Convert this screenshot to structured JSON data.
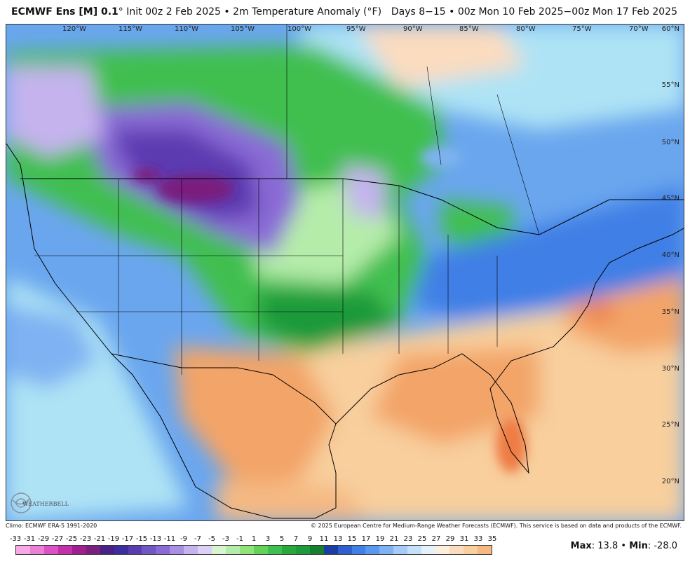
{
  "header": {
    "model": "ECMWF Ens [M] 0.1",
    "degree": "°",
    "init": "Init 00z 2 Feb 2025 • 2m Temperature Anomaly (°F)",
    "valid": "Days 8−15 • 00z Mon 10 Feb 2025−00z Mon 17 Feb 2025"
  },
  "map": {
    "longitudes": [
      "120°W",
      "115°W",
      "110°W",
      "105°W",
      "100°W",
      "95°W",
      "90°W",
      "85°W",
      "80°W",
      "75°W",
      "70°W"
    ],
    "latitudes": [
      "60°N",
      "55°N",
      "50°N",
      "45°N",
      "40°N",
      "35°N",
      "30°N",
      "25°N",
      "20°N"
    ],
    "colors": {
      "ocean_cold": "#9fd3f0",
      "deep_purple": "#7a1f7d",
      "purple": "#5b3bb0",
      "violet": "#8a6ad6",
      "lavender": "#c5b3ee",
      "green_dark": "#1f9a3a",
      "green": "#3fbf4f",
      "green_light": "#8fe37a",
      "blue": "#3f7fe6",
      "blue_light": "#7fb2f2",
      "cyan": "#aee3f5",
      "orange": "#f3a467",
      "orange_light": "#f8cf9d",
      "orange_dark": "#ee7b45"
    }
  },
  "footer": {
    "climo": "Climo: ECMWF ERA-5 1991-2020",
    "copyright": "© 2025 European Centre for Medium-Range Weather Forecasts (ECMWF). This service is based on data and products of the ECMWF."
  },
  "legend": {
    "ticks": [
      "-33",
      "-31",
      "-29",
      "-27",
      "-25",
      "-23",
      "-21",
      "-19",
      "-17",
      "-15",
      "-13",
      "-11",
      "-9",
      "-7",
      "-5",
      "-3",
      "-1",
      "1",
      "3",
      "5",
      "7",
      "9",
      "11",
      "13",
      "15",
      "17",
      "19",
      "21",
      "23",
      "25",
      "27",
      "29",
      "31",
      "33",
      "35"
    ],
    "colors": [
      "#f7a8e6",
      "#ec7fd8",
      "#dc52c4",
      "#c42faa",
      "#a01f8f",
      "#7a1f7d",
      "#4a1f86",
      "#3c2ea0",
      "#5b3bb0",
      "#7057c4",
      "#8a6ad6",
      "#a88fe3",
      "#c5b3ee",
      "#ddd0f6",
      "#d8f5d0",
      "#b5ecaa",
      "#8fe37a",
      "#63d257",
      "#3fbf4f",
      "#26a83c",
      "#1f9a3a",
      "#15802f",
      "#1a3fa0",
      "#2e5fd0",
      "#3f7fe6",
      "#5a97ee",
      "#7fb2f2",
      "#a5cbf6",
      "#c5e0f9",
      "#e4f2fc",
      "#fdeede",
      "#fbdcbf",
      "#f8cf9d",
      "#f5b983",
      "#f3a467",
      "#ee8a52",
      "#ee7b45",
      "#e2603a",
      "#cf4530",
      "#b53128",
      "#962521",
      "#ffe8e8",
      "#f6c9c9",
      "#eaa3a3",
      "#db7b7b",
      "#c95353",
      "#b63434",
      "#9b1f1f",
      "#7f1414",
      "#5f0c0c",
      "#d38c8c",
      "#a23c3c",
      "#b82a2a",
      "#c92f2f"
    ]
  },
  "stats": {
    "max_label": "Max",
    "max_value": "13.8",
    "sep": "•",
    "min_label": "Min",
    "min_value": "-28.0"
  },
  "logo": {
    "text": "WEATHERBELL"
  }
}
